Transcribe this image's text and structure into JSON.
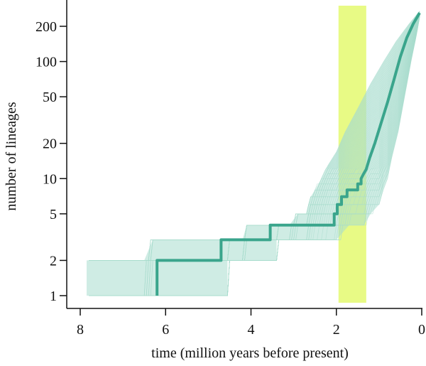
{
  "chart_data": {
    "type": "line",
    "title": "",
    "xlabel": "time (million years before present)",
    "ylabel": "number of lineages",
    "x_axis": {
      "reversed": true,
      "xlim": [
        8.2,
        0
      ],
      "ticks": [
        8,
        6,
        4,
        2,
        0
      ],
      "tick_labels": [
        "8",
        "6",
        "4",
        "2",
        "0"
      ]
    },
    "y_axis": {
      "scale": "log",
      "ylim": [
        0.8,
        300
      ],
      "ticks": [
        1,
        2,
        5,
        10,
        20,
        50,
        100,
        200
      ],
      "tick_labels": [
        "1",
        "2",
        "5",
        "10",
        "20",
        "50",
        "100",
        "200"
      ]
    },
    "grid": false,
    "legend": "none",
    "highlight_band": {
      "x_range": [
        1.95,
        1.3
      ],
      "color": "#e4f970"
    },
    "series": [
      {
        "role": "consensus lineage-through-time",
        "color": "#3aa58c",
        "points": [
          [
            6.2,
            1
          ],
          [
            6.2,
            2
          ],
          [
            4.7,
            2
          ],
          [
            4.7,
            3
          ],
          [
            3.55,
            3
          ],
          [
            3.55,
            4
          ],
          [
            2.05,
            4
          ],
          [
            2.05,
            5
          ],
          [
            1.98,
            5
          ],
          [
            1.98,
            6
          ],
          [
            1.88,
            6
          ],
          [
            1.88,
            7
          ],
          [
            1.75,
            7
          ],
          [
            1.75,
            8
          ],
          [
            1.5,
            8
          ],
          [
            1.5,
            9
          ],
          [
            1.42,
            9
          ],
          [
            1.42,
            10
          ],
          [
            1.36,
            11
          ],
          [
            1.3,
            12
          ],
          [
            1.22,
            15
          ],
          [
            1.1,
            20
          ],
          [
            0.95,
            30
          ],
          [
            0.8,
            45
          ],
          [
            0.65,
            70
          ],
          [
            0.5,
            110
          ],
          [
            0.35,
            160
          ],
          [
            0.2,
            210
          ],
          [
            0.05,
            260
          ]
        ]
      },
      {
        "role": "posterior sample envelope (upper)",
        "color": "#a8dccd",
        "points": [
          [
            7.85,
            2
          ],
          [
            6.5,
            2
          ],
          [
            6.3,
            3
          ],
          [
            4.8,
            3
          ],
          [
            4.2,
            3
          ],
          [
            4.1,
            4
          ],
          [
            3.1,
            4
          ],
          [
            2.9,
            5
          ],
          [
            2.7,
            5
          ],
          [
            2.6,
            7
          ],
          [
            2.5,
            8
          ],
          [
            2.35,
            10
          ],
          [
            2.2,
            13
          ],
          [
            2.0,
            17
          ],
          [
            1.8,
            25
          ],
          [
            1.5,
            40
          ],
          [
            1.2,
            65
          ],
          [
            0.9,
            100
          ],
          [
            0.6,
            150
          ],
          [
            0.3,
            210
          ],
          [
            0.05,
            270
          ]
        ]
      },
      {
        "role": "posterior sample envelope (lower)",
        "color": "#a8dccd",
        "points": [
          [
            7.85,
            1
          ],
          [
            4.55,
            1
          ],
          [
            4.55,
            2
          ],
          [
            3.4,
            2
          ],
          [
            3.4,
            3
          ],
          [
            2.0,
            3
          ],
          [
            1.7,
            4
          ],
          [
            1.5,
            4
          ],
          [
            1.35,
            4
          ],
          [
            1.2,
            5
          ],
          [
            1.0,
            6
          ],
          [
            0.9,
            8
          ],
          [
            0.8,
            10
          ],
          [
            0.7,
            15
          ],
          [
            0.55,
            25
          ],
          [
            0.4,
            50
          ],
          [
            0.25,
            100
          ],
          [
            0.12,
            170
          ],
          [
            0.05,
            240
          ]
        ]
      }
    ]
  }
}
